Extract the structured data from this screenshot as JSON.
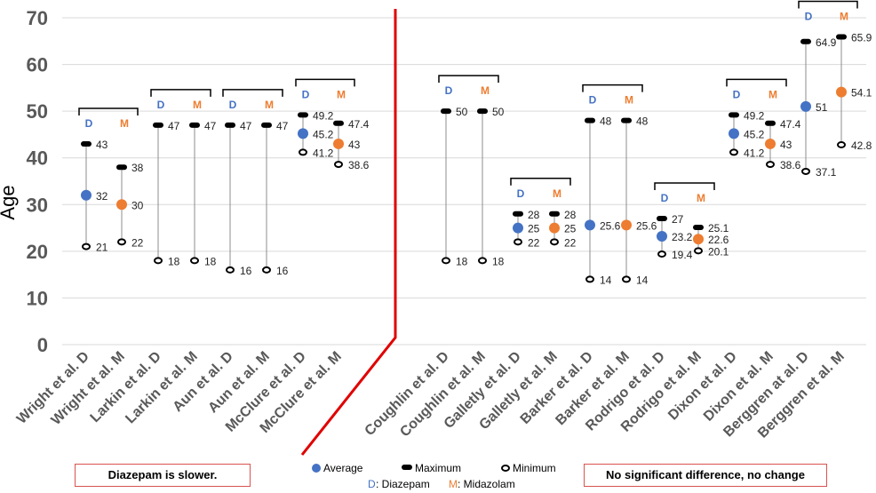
{
  "chart_data": {
    "type": "range-dot",
    "ylabel": "Age",
    "ylim": [
      0,
      70
    ],
    "yticks": [
      0,
      10,
      20,
      30,
      40,
      50,
      60,
      70
    ],
    "grid": true,
    "categories": [
      "Wright et al. D",
      "Wright et al. M",
      "Larkin et al. D",
      "Larkin et al. M",
      "Aun et al. D",
      "Aun et al. M",
      "McClure et al. D",
      "McClure et al. M",
      "Coughlin et al. D",
      "Coughlin et al. M",
      "Galletly et al. D",
      "Galletly et al. M",
      "Barker et al. D",
      "Barker et al. M",
      "Rodrigo et al. D",
      "Rodrigo et al. M",
      "Dixon et al. D",
      "Dixon et al. M",
      "Berggren at al. D",
      "Berggren et al. M"
    ],
    "drug": [
      "D",
      "M",
      "D",
      "M",
      "D",
      "M",
      "D",
      "M",
      "D",
      "M",
      "D",
      "M",
      "D",
      "M",
      "D",
      "M",
      "D",
      "M",
      "D",
      "M"
    ],
    "series": [
      {
        "name": "Average",
        "values": [
          32,
          30,
          null,
          null,
          null,
          null,
          45.2,
          43,
          null,
          null,
          25,
          25,
          25.6,
          25.6,
          23.2,
          22.6,
          45.2,
          43,
          51,
          54.1
        ],
        "labels": [
          "32",
          "30",
          "",
          "",
          "",
          "",
          "45.2",
          "43",
          "",
          "",
          "25",
          "25",
          "25.6",
          "25.6",
          "23.2",
          "22.6",
          "45.2",
          "43",
          "51",
          "54.1"
        ]
      },
      {
        "name": "Maximum",
        "values": [
          43,
          38,
          47,
          47,
          47,
          47,
          49.2,
          47.4,
          50,
          50,
          28,
          28,
          48,
          48,
          27,
          25.1,
          49.2,
          47.4,
          64.9,
          65.9
        ],
        "labels": [
          "43",
          "38",
          "47",
          "47",
          "47",
          "47",
          "49.2",
          "47.4",
          "50",
          "50",
          "28",
          "28",
          "48",
          "48",
          "27",
          "25.1",
          "49.2",
          "47.4",
          "64.9",
          "65.9"
        ]
      },
      {
        "name": "Minimum",
        "values": [
          21,
          22,
          18,
          18,
          16,
          16,
          41.2,
          38.6,
          18,
          18,
          22,
          22,
          14,
          14,
          19.4,
          20.1,
          41.2,
          38.6,
          37.1,
          42.8
        ],
        "labels": [
          "21",
          "22",
          "18",
          "18",
          "16",
          "16",
          "41.2",
          "38.6",
          "18",
          "18",
          "22",
          "22",
          "14",
          "14",
          "19.4",
          "20.1",
          "41.2",
          "38.6",
          "37.1",
          "42.8"
        ]
      }
    ],
    "groups": [
      {
        "members": [
          0,
          1
        ],
        "d_label": "D",
        "m_label": "M"
      },
      {
        "members": [
          2,
          3
        ],
        "d_label": "D",
        "m_label": "M"
      },
      {
        "members": [
          4,
          5
        ],
        "d_label": "D",
        "m_label": "M"
      },
      {
        "members": [
          6,
          7
        ],
        "d_label": "D",
        "m_label": "M"
      },
      {
        "members": [
          8,
          9
        ],
        "d_label": "D",
        "m_label": "M"
      },
      {
        "members": [
          10,
          11
        ],
        "d_label": "D",
        "m_label": "M"
      },
      {
        "members": [
          12,
          13
        ],
        "d_label": "D",
        "m_label": "M"
      },
      {
        "members": [
          14,
          15
        ],
        "d_label": "D",
        "m_label": "M"
      },
      {
        "members": [
          16,
          17
        ],
        "d_label": "D",
        "m_label": "M"
      },
      {
        "members": [
          18,
          19
        ],
        "d_label": "D",
        "m_label": "M"
      }
    ],
    "legend": {
      "placement": "bottom-center",
      "average": "Average",
      "maximum": "Maximum",
      "minimum": "Minimum",
      "d_key": "D",
      "d_text": ": Diazepam",
      "m_key": "M",
      "m_text": ": Midazolam"
    },
    "notes": {
      "left": "Diazepam is slower.",
      "right": "No significant difference, no change"
    }
  },
  "colors": {
    "diazepam": "#4472c4",
    "midazolam": "#ed7d31",
    "divider": "#e00000",
    "grid": "#d9d9d9",
    "range_line": "#8c8c8c",
    "tick_text": "#595959",
    "note_border": "#d9534f"
  }
}
